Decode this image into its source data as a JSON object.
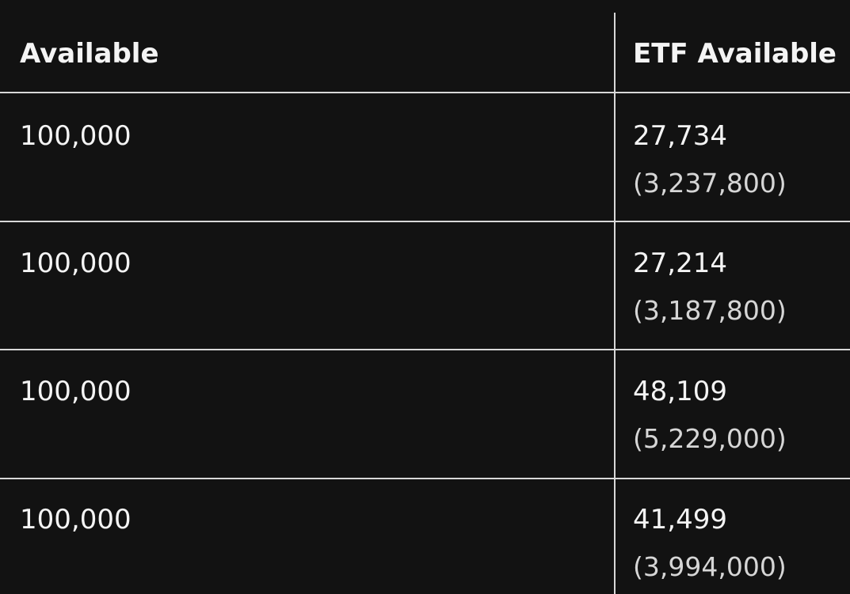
{
  "table": {
    "headers": [
      "Available",
      "ETF Available"
    ],
    "rows": [
      {
        "available": "100,000",
        "etf_available": "27,734",
        "etf_sub": "(3,237,800)"
      },
      {
        "available": "100,000",
        "etf_available": "27,214",
        "etf_sub": "(3,187,800)"
      },
      {
        "available": "100,000",
        "etf_available": "48,109",
        "etf_sub": "(5,229,000)"
      },
      {
        "available": "100,000",
        "etf_available": "41,499",
        "etf_sub": "(3,994,000)"
      }
    ]
  },
  "colors": {
    "background": "#121212",
    "text": "#f4f4f4",
    "subtext": "#d6d6d6",
    "grid": "#d8d8d8"
  }
}
